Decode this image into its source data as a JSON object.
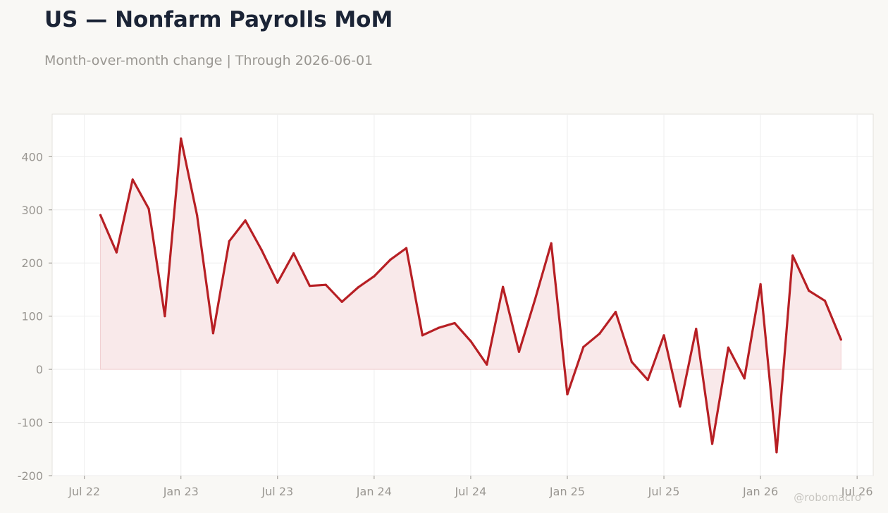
{
  "header": {
    "title": "US — Nonfarm Payrolls MoM",
    "subtitle": "Month-over-month change | Through 2026-06-01"
  },
  "watermark": "@robomacro",
  "colors": {
    "line": "#b71f24",
    "fill": "#f9e9ea",
    "background": "#f9f8f5",
    "plot_background": "#ffffff",
    "grid": "#eeeeee",
    "axis_text": "#9a9792",
    "title": "#1b2436"
  },
  "chart_data": {
    "type": "area",
    "title": "US — Nonfarm Payrolls MoM",
    "subtitle": "Month-over-month change | Through 2026-06-01",
    "xlabel": "",
    "ylabel": "",
    "ylim": [
      -200,
      480
    ],
    "xlim": [
      "2022-05-01",
      "2026-08-01"
    ],
    "yticks": [
      -200,
      -100,
      0,
      100,
      200,
      300,
      400
    ],
    "xticks": [
      {
        "date": "2022-07-01",
        "label": "Jul 22"
      },
      {
        "date": "2023-01-01",
        "label": "Jan 23"
      },
      {
        "date": "2023-07-01",
        "label": "Jul 23"
      },
      {
        "date": "2024-01-01",
        "label": "Jan 24"
      },
      {
        "date": "2024-07-01",
        "label": "Jul 24"
      },
      {
        "date": "2025-01-01",
        "label": "Jan 25"
      },
      {
        "date": "2025-07-01",
        "label": "Jul 25"
      },
      {
        "date": "2026-01-01",
        "label": "Jan 26"
      },
      {
        "date": "2026-07-01",
        "label": "Jul 26"
      }
    ],
    "grid": true,
    "legend": "none",
    "series": [
      {
        "x": [
          "2022-08-01",
          "2022-09-01",
          "2022-10-01",
          "2022-11-01",
          "2022-12-01",
          "2023-01-01",
          "2023-02-01",
          "2023-03-01",
          "2023-04-01",
          "2023-05-01",
          "2023-06-01",
          "2023-07-01",
          "2023-08-01",
          "2023-09-01",
          "2023-10-01",
          "2023-11-01",
          "2023-12-01",
          "2024-01-01",
          "2024-02-01",
          "2024-03-01",
          "2024-04-01",
          "2024-05-01",
          "2024-06-01",
          "2024-07-01",
          "2024-08-01",
          "2024-09-01",
          "2024-10-01",
          "2024-11-01",
          "2024-12-01",
          "2025-01-01",
          "2025-02-01",
          "2025-03-01",
          "2025-04-01",
          "2025-05-01",
          "2025-06-01",
          "2025-07-01",
          "2025-08-01",
          "2025-09-01",
          "2025-10-01",
          "2025-11-01",
          "2025-12-01",
          "2026-01-01",
          "2026-02-01",
          "2026-03-01",
          "2026-04-01",
          "2026-05-01",
          "2026-06-01"
        ],
        "values": [
          290,
          220,
          357,
          302,
          100,
          434,
          290,
          68,
          241,
          280,
          225,
          163,
          218,
          157,
          159,
          127,
          154,
          175,
          206,
          228,
          64,
          78,
          87,
          53,
          9,
          155,
          33,
          132,
          237,
          -47,
          42,
          67,
          108,
          14,
          -20,
          64,
          -70,
          76,
          -140,
          41,
          -17,
          160,
          -156,
          214,
          148,
          129,
          56
        ]
      }
    ]
  }
}
